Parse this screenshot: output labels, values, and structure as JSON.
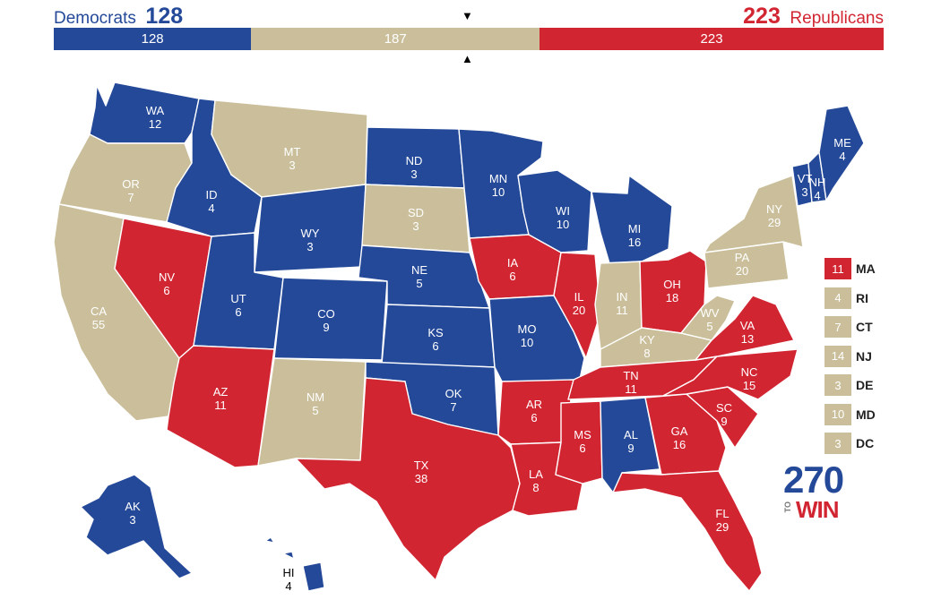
{
  "colors": {
    "dem": "#244999",
    "rep": "#d22532",
    "tossup": "#cabf9a"
  },
  "header": {
    "dem_name": "Democrats",
    "dem_total": "128",
    "rep_total": "223",
    "rep_name": "Republicans"
  },
  "bar": {
    "dem": {
      "value": 128,
      "label": "128"
    },
    "tossup": {
      "value": 187,
      "label": "187"
    },
    "rep": {
      "value": 223,
      "label": "223"
    },
    "top_marker": "▼",
    "bottom_marker": "▲"
  },
  "states": [
    {
      "abbr": "WA",
      "ev": "12",
      "party": "dem"
    },
    {
      "abbr": "OR",
      "ev": "7",
      "party": "tossup"
    },
    {
      "abbr": "CA",
      "ev": "55",
      "party": "tossup"
    },
    {
      "abbr": "NV",
      "ev": "6",
      "party": "rep"
    },
    {
      "abbr": "ID",
      "ev": "4",
      "party": "dem"
    },
    {
      "abbr": "MT",
      "ev": "3",
      "party": "tossup"
    },
    {
      "abbr": "WY",
      "ev": "3",
      "party": "dem"
    },
    {
      "abbr": "UT",
      "ev": "6",
      "party": "dem"
    },
    {
      "abbr": "AZ",
      "ev": "11",
      "party": "rep"
    },
    {
      "abbr": "CO",
      "ev": "9",
      "party": "dem"
    },
    {
      "abbr": "NM",
      "ev": "5",
      "party": "tossup"
    },
    {
      "abbr": "ND",
      "ev": "3",
      "party": "dem"
    },
    {
      "abbr": "SD",
      "ev": "3",
      "party": "tossup"
    },
    {
      "abbr": "NE",
      "ev": "5",
      "party": "dem"
    },
    {
      "abbr": "KS",
      "ev": "6",
      "party": "dem"
    },
    {
      "abbr": "OK",
      "ev": "7",
      "party": "dem"
    },
    {
      "abbr": "TX",
      "ev": "38",
      "party": "rep"
    },
    {
      "abbr": "MN",
      "ev": "10",
      "party": "dem"
    },
    {
      "abbr": "IA",
      "ev": "6",
      "party": "rep"
    },
    {
      "abbr": "MO",
      "ev": "10",
      "party": "dem"
    },
    {
      "abbr": "AR",
      "ev": "6",
      "party": "rep"
    },
    {
      "abbr": "LA",
      "ev": "8",
      "party": "rep"
    },
    {
      "abbr": "WI",
      "ev": "10",
      "party": "dem"
    },
    {
      "abbr": "IL",
      "ev": "20",
      "party": "rep"
    },
    {
      "abbr": "MI",
      "ev": "16",
      "party": "dem"
    },
    {
      "abbr": "IN",
      "ev": "11",
      "party": "tossup"
    },
    {
      "abbr": "OH",
      "ev": "18",
      "party": "rep"
    },
    {
      "abbr": "KY",
      "ev": "8",
      "party": "tossup"
    },
    {
      "abbr": "TN",
      "ev": "11",
      "party": "rep"
    },
    {
      "abbr": "MS",
      "ev": "6",
      "party": "rep"
    },
    {
      "abbr": "AL",
      "ev": "9",
      "party": "dem"
    },
    {
      "abbr": "GA",
      "ev": "16",
      "party": "rep"
    },
    {
      "abbr": "FL",
      "ev": "29",
      "party": "rep"
    },
    {
      "abbr": "SC",
      "ev": "9",
      "party": "rep"
    },
    {
      "abbr": "NC",
      "ev": "15",
      "party": "rep"
    },
    {
      "abbr": "VA",
      "ev": "13",
      "party": "rep"
    },
    {
      "abbr": "WV",
      "ev": "5",
      "party": "tossup"
    },
    {
      "abbr": "PA",
      "ev": "20",
      "party": "tossup"
    },
    {
      "abbr": "NY",
      "ev": "29",
      "party": "tossup"
    },
    {
      "abbr": "VT",
      "ev": "3",
      "party": "dem"
    },
    {
      "abbr": "NH",
      "ev": "4",
      "party": "dem"
    },
    {
      "abbr": "ME",
      "ev": "4",
      "party": "dem"
    },
    {
      "abbr": "AK",
      "ev": "3",
      "party": "dem"
    },
    {
      "abbr": "HI",
      "ev": "4",
      "party": "dem"
    }
  ],
  "small_states": [
    {
      "abbr": "MA",
      "ev": "11",
      "party": "rep"
    },
    {
      "abbr": "RI",
      "ev": "4",
      "party": "tossup"
    },
    {
      "abbr": "CT",
      "ev": "7",
      "party": "tossup"
    },
    {
      "abbr": "NJ",
      "ev": "14",
      "party": "tossup"
    },
    {
      "abbr": "DE",
      "ev": "3",
      "party": "tossup"
    },
    {
      "abbr": "MD",
      "ev": "10",
      "party": "tossup"
    },
    {
      "abbr": "DC",
      "ev": "3",
      "party": "tossup"
    }
  ],
  "logo": {
    "number": "270",
    "to": "TO",
    "win": "WIN"
  }
}
